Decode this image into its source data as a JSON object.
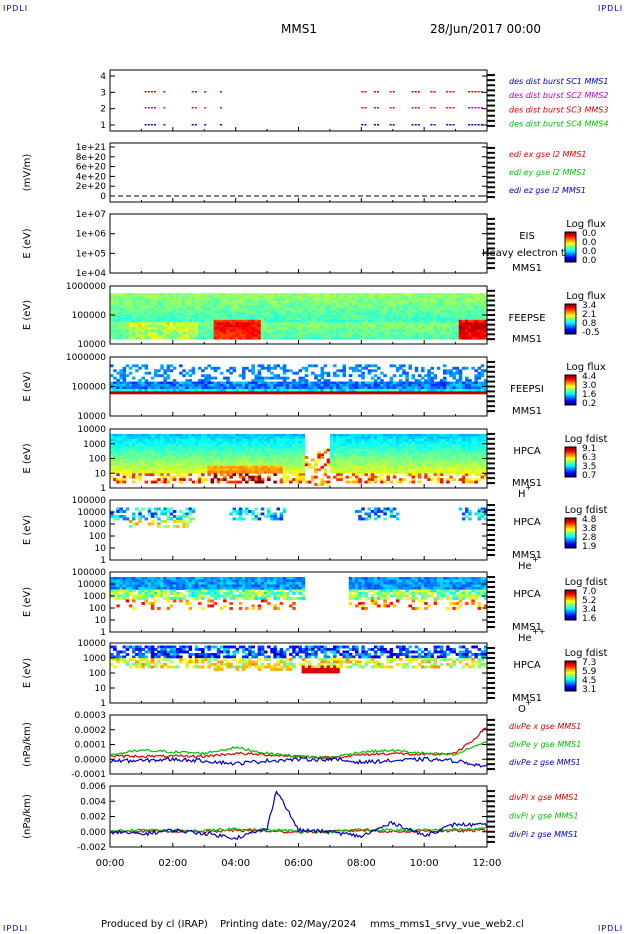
{
  "header": {
    "corner_label": "IPDLI",
    "mission": "MMS1",
    "date": "28/Jun/2017 00:00"
  },
  "footer": {
    "produced_by": "Produced by cl (IRAP)",
    "printing_date": "Printing date: 02/May/2024",
    "script": "mms_mms1_srvy_vue_web2.cl"
  },
  "panels": [
    {
      "id": "burst",
      "ylabel": "",
      "yticks": [
        "4",
        "3",
        "2",
        "1"
      ],
      "legend": [
        {
          "text": "des dist burst SC1 MMS1",
          "color": "#0000c0"
        },
        {
          "text": "des dist burst SC2 MMS2",
          "color": "#c000c0"
        },
        {
          "text": "des dist burst SC3 MMS3",
          "color": "#e00000"
        },
        {
          "text": "des dist burst SC4 MMS4",
          "color": "#00c000"
        }
      ]
    },
    {
      "id": "edi",
      "ylabel": "(mV/m)",
      "yticks": [
        "1e+21",
        "8e+20",
        "6e+20",
        "4e+20",
        "2e+20",
        "0"
      ],
      "legend": [
        {
          "text": "edi ex gse l2 MMS1",
          "color": "#e00000"
        },
        {
          "text": "edi ey gse l2 MMS1",
          "color": "#00c000"
        },
        {
          "text": "edi ez gse l2 MMS1",
          "color": "#0000c0"
        }
      ]
    },
    {
      "id": "eis",
      "ylabel": "E (eV)",
      "yticks": [
        "1e+07",
        "1e+06",
        "1e+05",
        "1e+04"
      ],
      "labels": [
        "EIS",
        "MMS1"
      ],
      "overlay": "Heavy electron to",
      "colorbar": {
        "title": "Log flux",
        "ticks": [
          "0.0",
          "0.0",
          "0.0",
          "0.0"
        ]
      }
    },
    {
      "id": "feepse",
      "ylabel": "E (eV)",
      "yticks": [
        "1000000",
        "100000",
        "10000"
      ],
      "labels": [
        "FEEPSE",
        "MMS1"
      ],
      "colorbar": {
        "title": "Log flux",
        "ticks": [
          "3.4",
          "2.1",
          "0.8",
          "-0.5"
        ]
      }
    },
    {
      "id": "feepsi",
      "ylabel": "E (eV)",
      "yticks": [
        "1000000",
        "100000",
        "10000"
      ],
      "labels": [
        "FEEPSI",
        "MMS1"
      ],
      "colorbar": {
        "title": "Log flux",
        "ticks": [
          "4.4",
          "3.0",
          "1.6",
          "0.2"
        ]
      }
    },
    {
      "id": "hpca_h",
      "ylabel": "E (eV)",
      "yticks": [
        "10000",
        "1000",
        "100",
        "10",
        "1"
      ],
      "labels": [
        "HPCA",
        "MMS1"
      ],
      "species": "H",
      "charge": "+",
      "colorbar": {
        "title": "Log fdist",
        "ticks": [
          "9.1",
          "6.3",
          "3.5",
          "0.7"
        ]
      }
    },
    {
      "id": "hpca_he",
      "ylabel": "E (eV)",
      "yticks": [
        "100000",
        "10000",
        "1000",
        "100",
        "10",
        "1"
      ],
      "labels": [
        "HPCA",
        "MMS1"
      ],
      "species": "He",
      "charge": "+",
      "colorbar": {
        "title": "Log fdist",
        "ticks": [
          "4.8",
          "3.8",
          "2.8",
          "1.9"
        ]
      }
    },
    {
      "id": "hpca_hepp",
      "ylabel": "E (eV)",
      "yticks": [
        "100000",
        "10000",
        "1000",
        "100",
        "10",
        "1"
      ],
      "labels": [
        "HPCA",
        "MMS1"
      ],
      "species": "He",
      "charge": "++",
      "colorbar": {
        "title": "Log fdist",
        "ticks": [
          "7.0",
          "5.2",
          "3.4",
          "1.6"
        ]
      }
    },
    {
      "id": "hpca_o",
      "ylabel": "E (eV)",
      "yticks": [
        "10000",
        "1000",
        "100",
        "10",
        "1"
      ],
      "labels": [
        "HPCA",
        "MMS1"
      ],
      "species": "O",
      "charge": "+",
      "colorbar": {
        "title": "Log fdist",
        "ticks": [
          "7.3",
          "5.9",
          "4.5",
          "3.1"
        ]
      }
    },
    {
      "id": "divpe",
      "ylabel": "(nPa/km)",
      "yticks": [
        "0.0003",
        "0.0002",
        "0.0001",
        "0.0000",
        "-0.0001"
      ],
      "legend": [
        {
          "text": "divPe x gse MMS1",
          "color": "#e00000"
        },
        {
          "text": "divPe y gse MMS1",
          "color": "#00c000"
        },
        {
          "text": "divPe z gse MMS1",
          "color": "#0000c0"
        }
      ]
    },
    {
      "id": "divpi",
      "ylabel": "(nPa/km)",
      "yticks": [
        "0.006",
        "0.004",
        "0.002",
        "0.000",
        "-0.002"
      ],
      "legend": [
        {
          "text": "divPi x gse MMS1",
          "color": "#e00000"
        },
        {
          "text": "divPi y gse MMS1",
          "color": "#00c000"
        },
        {
          "text": "divPi z gse MMS1",
          "color": "#0000c0"
        }
      ]
    }
  ],
  "chart_data": {
    "type": "line",
    "title": "MMS1 28/Jun/2017 00:00",
    "x_tick_labels": [
      "00:00",
      "02:00",
      "04:00",
      "06:00",
      "08:00",
      "10:00",
      "12:00"
    ],
    "xlim_hours": [
      0,
      12
    ],
    "series": [
      {
        "name": "divPe x gse MMS1",
        "panel": "divpe",
        "x_hours": [
          0,
          1,
          2,
          3,
          4,
          5,
          6,
          7,
          8,
          9,
          10,
          11,
          11.5,
          12
        ],
        "values": [
          2e-05,
          2e-05,
          2e-05,
          2e-05,
          4e-05,
          3e-05,
          2e-05,
          1e-05,
          3e-05,
          4e-05,
          3e-05,
          4e-05,
          0.00012,
          0.00022
        ]
      },
      {
        "name": "divPe y gse MMS1",
        "panel": "divpe",
        "x_hours": [
          0,
          1,
          2,
          3,
          4,
          5,
          6,
          7,
          8,
          9,
          10,
          11,
          11.5,
          12
        ],
        "values": [
          3e-05,
          6e-05,
          5e-05,
          4e-05,
          8e-05,
          4e-05,
          2e-05,
          1e-05,
          5e-05,
          6e-05,
          4e-05,
          3e-05,
          8e-05,
          0.00012
        ]
      },
      {
        "name": "divPe z gse MMS1",
        "panel": "divpe",
        "x_hours": [
          0,
          1,
          2,
          3,
          4,
          5,
          6,
          7,
          8,
          9,
          10,
          11,
          11.5,
          12
        ],
        "values": [
          -1e-05,
          -1e-05,
          0.0,
          -1e-05,
          -3e-05,
          -1e-05,
          0.0,
          0.0,
          -2e-05,
          -1e-05,
          0.0,
          -1e-05,
          -3e-05,
          -5e-05
        ]
      },
      {
        "name": "divPi x gse MMS1",
        "panel": "divpi",
        "x_hours": [
          0,
          1,
          2,
          3,
          4,
          5,
          5.3,
          6,
          7,
          8,
          9,
          10,
          11,
          12
        ],
        "values": [
          0.0,
          0.0001,
          0.0001,
          0.0,
          0.0002,
          0.0001,
          0.0,
          0.0,
          0.0,
          0.0002,
          0.0,
          0.0001,
          0.0001,
          0.0002
        ]
      },
      {
        "name": "divPi y gse MMS1",
        "panel": "divpi",
        "x_hours": [
          0,
          1,
          2,
          3,
          4,
          5,
          5.3,
          6,
          7,
          8,
          9,
          10,
          11,
          12
        ],
        "values": [
          0.0001,
          0.0002,
          0.0001,
          0.0001,
          0.0004,
          0.0002,
          0.0002,
          0.0001,
          0.0,
          0.0003,
          0.0002,
          0.0002,
          0.0003,
          0.0004
        ]
      },
      {
        "name": "divPi z gse MMS1",
        "panel": "divpi",
        "x_hours": [
          0,
          1,
          2,
          3,
          4,
          5,
          5.3,
          6,
          7,
          8,
          9,
          10,
          11,
          12
        ],
        "values": [
          0.0,
          -0.0003,
          0.0002,
          -0.0002,
          -0.0008,
          0.0004,
          0.0055,
          0.0002,
          0.0,
          -0.0006,
          0.0012,
          -0.0005,
          0.001,
          0.0008
        ]
      }
    ]
  }
}
